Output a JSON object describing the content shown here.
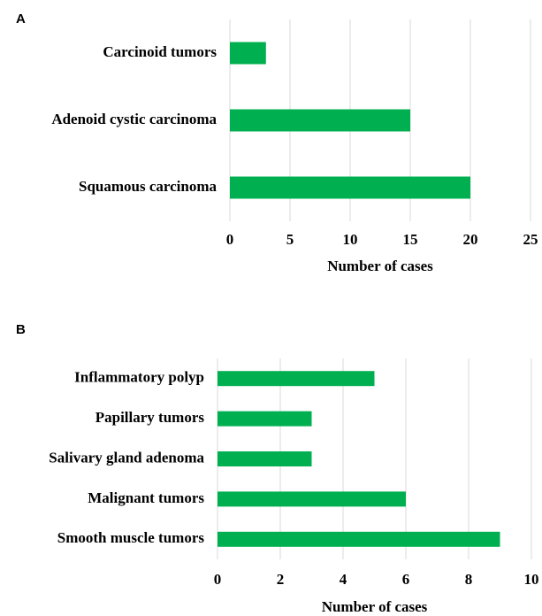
{
  "chart_data": [
    {
      "type": "bar",
      "orientation": "horizontal",
      "panel": "A",
      "categories": [
        "Carcinoid tumors",
        "Adenoid cystic carcinoma",
        "Squamous carcinoma"
      ],
      "values": [
        3,
        15,
        20
      ],
      "color": "#00b050",
      "xlabel": "Number of cases",
      "xlim": [
        0,
        25
      ],
      "xticks": [
        0,
        5,
        10,
        15,
        20,
        25
      ],
      "grid": true
    },
    {
      "type": "bar",
      "orientation": "horizontal",
      "panel": "B",
      "categories": [
        "Inflammatory polyp",
        "Papillary tumors",
        "Salivary gland adenoma",
        "Malignant tumors",
        "Smooth muscle tumors"
      ],
      "values": [
        5,
        3,
        3,
        6,
        9
      ],
      "color": "#00b050",
      "xlabel": "Number of cases",
      "xlim": [
        0,
        10
      ],
      "xticks": [
        0,
        2,
        4,
        6,
        8,
        10
      ],
      "grid": true
    }
  ]
}
